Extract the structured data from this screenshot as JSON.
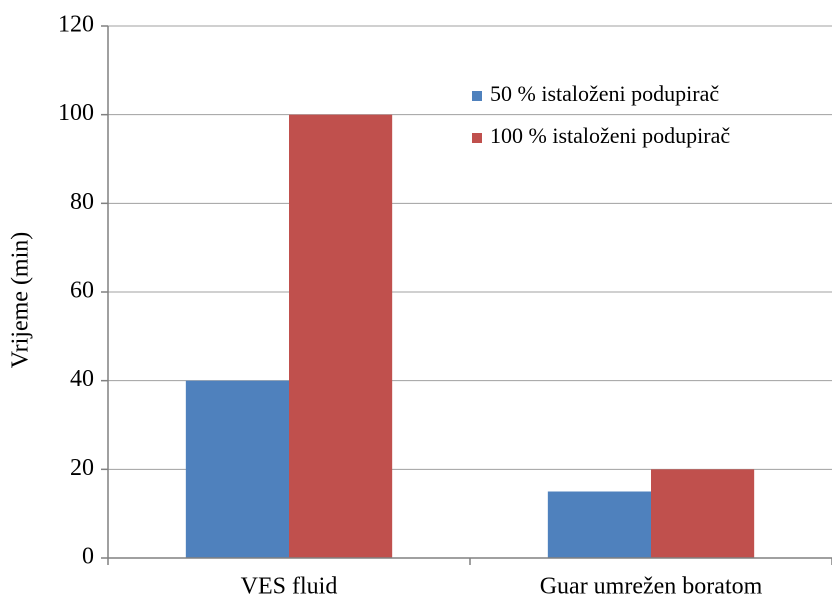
{
  "chart_data": {
    "type": "bar",
    "y_label": "Vrijeme (min)",
    "categories": [
      "VES fluid",
      "Guar umrežen boratom"
    ],
    "series": [
      {
        "name": "50 % istaloženi podupirač",
        "color": "#4f81bd",
        "values": [
          40,
          15
        ]
      },
      {
        "name": "100 % istaloženi podupirač",
        "color": "#c0504d",
        "values": [
          100,
          20
        ]
      }
    ],
    "ylim": [
      0,
      120
    ],
    "yticks": [
      0,
      20,
      40,
      60,
      80,
      100,
      120
    ],
    "grid": true,
    "legend": "top-right"
  }
}
